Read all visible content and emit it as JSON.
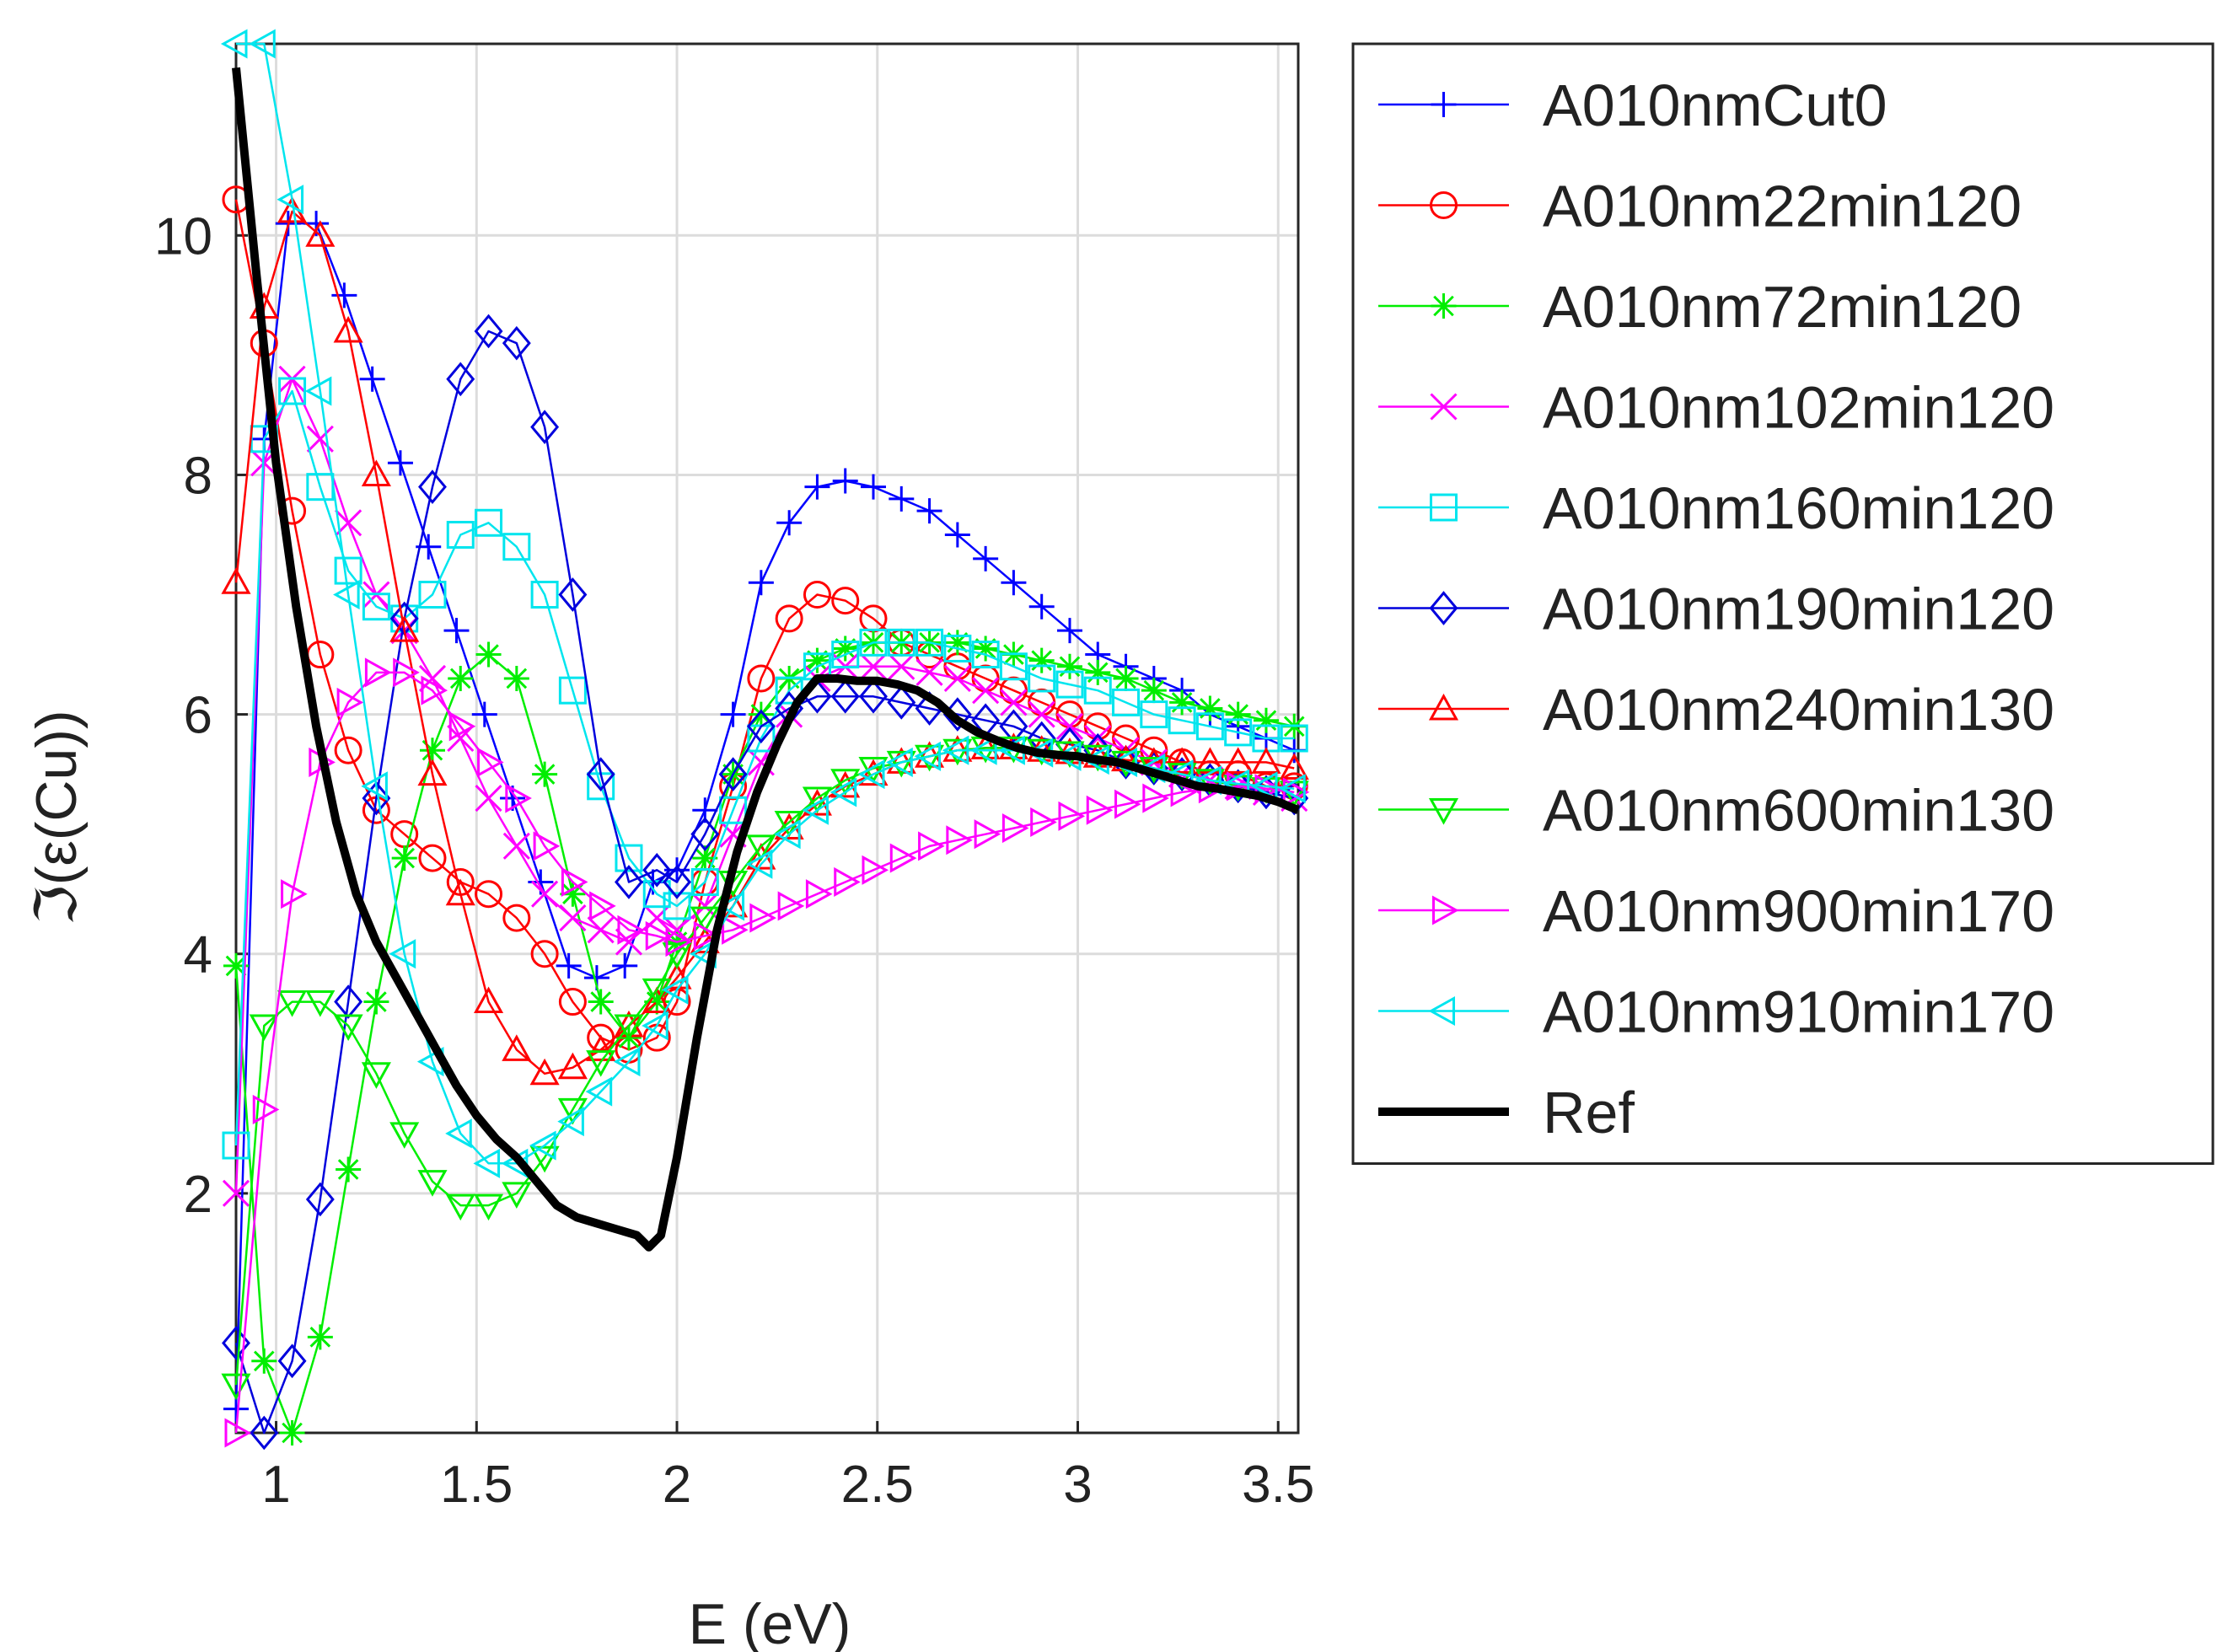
{
  "chart_data": {
    "type": "line",
    "title": "",
    "xlabel": "E (eV)",
    "ylabel": "ℑ(ε(Cu))",
    "xlim": [
      0.9,
      3.55
    ],
    "ylim": [
      0,
      11.6
    ],
    "xticks": [
      1,
      1.5,
      2,
      2.5,
      3,
      3.5
    ],
    "xtick_labels": [
      "1",
      "1.5",
      "2",
      "2.5",
      "3",
      "3.5"
    ],
    "yticks": [
      2,
      4,
      6,
      8,
      10
    ],
    "ytick_labels": [
      "2",
      "4",
      "6",
      "8",
      "10"
    ],
    "grid": true,
    "legend_position": "outside-right",
    "series": [
      {
        "name": "A010nmCut0",
        "color": "#0000ff",
        "marker": "plus",
        "x": [
          0.9,
          0.97,
          1.03,
          1.1,
          1.17,
          1.24,
          1.31,
          1.38,
          1.45,
          1.52,
          1.59,
          1.66,
          1.73,
          1.8,
          1.87,
          1.94,
          2.0,
          2.07,
          2.14,
          2.21,
          2.28,
          2.35,
          2.42,
          2.49,
          2.56,
          2.63,
          2.7,
          2.77,
          2.84,
          2.91,
          2.98,
          3.05,
          3.12,
          3.19,
          3.26,
          3.33,
          3.4,
          3.47,
          3.54
        ],
        "y": [
          0.2,
          8.3,
          10.1,
          10.1,
          9.5,
          8.8,
          8.1,
          7.4,
          6.7,
          6.0,
          5.3,
          4.6,
          3.9,
          3.8,
          3.9,
          4.6,
          4.7,
          5.2,
          6.0,
          7.1,
          7.6,
          7.9,
          7.95,
          7.9,
          7.8,
          7.7,
          7.5,
          7.3,
          7.1,
          6.9,
          6.7,
          6.5,
          6.4,
          6.3,
          6.2,
          6.0,
          5.9,
          5.8,
          5.7
        ]
      },
      {
        "name": "A010nm22min120",
        "color": "#ff0000",
        "marker": "circle",
        "x": [
          0.9,
          0.97,
          1.04,
          1.11,
          1.18,
          1.25,
          1.32,
          1.39,
          1.46,
          1.53,
          1.6,
          1.67,
          1.74,
          1.81,
          1.88,
          1.95,
          2.0,
          2.07,
          2.14,
          2.21,
          2.28,
          2.35,
          2.42,
          2.49,
          2.56,
          2.63,
          2.7,
          2.77,
          2.84,
          2.91,
          2.98,
          3.05,
          3.12,
          3.19,
          3.26,
          3.33,
          3.4,
          3.47,
          3.54
        ],
        "y": [
          10.3,
          9.1,
          7.7,
          6.5,
          5.7,
          5.2,
          5.0,
          4.8,
          4.6,
          4.5,
          4.3,
          4.0,
          3.6,
          3.3,
          3.2,
          3.3,
          3.6,
          4.6,
          5.4,
          6.3,
          6.8,
          7.0,
          6.95,
          6.8,
          6.6,
          6.5,
          6.4,
          6.3,
          6.2,
          6.1,
          6.0,
          5.9,
          5.8,
          5.7,
          5.6,
          5.5,
          5.5,
          5.4,
          5.4
        ]
      },
      {
        "name": "A010nm72min120",
        "color": "#00ee00",
        "marker": "asterisk",
        "x": [
          0.9,
          0.97,
          1.04,
          1.11,
          1.18,
          1.25,
          1.32,
          1.39,
          1.46,
          1.53,
          1.6,
          1.67,
          1.74,
          1.81,
          1.88,
          1.95,
          2.0,
          2.07,
          2.14,
          2.21,
          2.28,
          2.35,
          2.42,
          2.49,
          2.56,
          2.63,
          2.7,
          2.77,
          2.84,
          2.91,
          2.98,
          3.05,
          3.12,
          3.19,
          3.26,
          3.33,
          3.4,
          3.47,
          3.54
        ],
        "y": [
          3.9,
          0.6,
          0.0,
          0.8,
          2.2,
          3.6,
          4.8,
          5.7,
          6.3,
          6.5,
          6.3,
          5.5,
          4.5,
          3.6,
          3.3,
          3.6,
          4.1,
          4.8,
          5.5,
          6.0,
          6.3,
          6.45,
          6.55,
          6.6,
          6.6,
          6.6,
          6.6,
          6.55,
          6.5,
          6.45,
          6.4,
          6.35,
          6.3,
          6.2,
          6.1,
          6.05,
          6.0,
          5.95,
          5.9
        ]
      },
      {
        "name": "A010nm102min120",
        "color": "#ff00ff",
        "marker": "x",
        "x": [
          0.9,
          0.97,
          1.04,
          1.11,
          1.18,
          1.25,
          1.32,
          1.39,
          1.46,
          1.53,
          1.6,
          1.67,
          1.74,
          1.81,
          1.88,
          1.95,
          2.0,
          2.07,
          2.14,
          2.21,
          2.28,
          2.35,
          2.42,
          2.49,
          2.56,
          2.63,
          2.7,
          2.77,
          2.84,
          2.91,
          2.98,
          3.05,
          3.12,
          3.19,
          3.26,
          3.33,
          3.4,
          3.47,
          3.54
        ],
        "y": [
          2.0,
          8.1,
          8.8,
          8.3,
          7.6,
          7.0,
          6.7,
          6.3,
          5.8,
          5.3,
          4.9,
          4.5,
          4.3,
          4.2,
          4.1,
          4.3,
          4.2,
          4.4,
          5.0,
          5.6,
          6.0,
          6.3,
          6.4,
          6.4,
          6.4,
          6.35,
          6.3,
          6.2,
          6.1,
          6.0,
          5.9,
          5.8,
          5.7,
          5.6,
          5.5,
          5.45,
          5.4,
          5.35,
          5.3
        ]
      },
      {
        "name": "A010nm160min120",
        "color": "#00e5ee",
        "marker": "square",
        "x": [
          0.9,
          0.97,
          1.04,
          1.11,
          1.18,
          1.25,
          1.32,
          1.39,
          1.46,
          1.53,
          1.6,
          1.67,
          1.74,
          1.81,
          1.88,
          1.95,
          2.0,
          2.07,
          2.14,
          2.21,
          2.28,
          2.35,
          2.42,
          2.49,
          2.56,
          2.63,
          2.7,
          2.77,
          2.84,
          2.91,
          2.98,
          3.05,
          3.12,
          3.19,
          3.26,
          3.33,
          3.4,
          3.47,
          3.54
        ],
        "y": [
          2.4,
          8.3,
          8.7,
          7.9,
          7.2,
          6.9,
          6.8,
          7.0,
          7.5,
          7.6,
          7.4,
          7.0,
          6.2,
          5.4,
          4.8,
          4.5,
          4.4,
          4.6,
          5.2,
          5.8,
          6.2,
          6.4,
          6.5,
          6.6,
          6.6,
          6.6,
          6.55,
          6.5,
          6.4,
          6.3,
          6.25,
          6.2,
          6.1,
          6.0,
          5.95,
          5.9,
          5.85,
          5.8,
          5.8
        ]
      },
      {
        "name": "A010nm190min120",
        "color": "#0000dd",
        "marker": "diamond",
        "x": [
          0.9,
          0.97,
          1.04,
          1.11,
          1.18,
          1.25,
          1.32,
          1.39,
          1.46,
          1.53,
          1.6,
          1.67,
          1.74,
          1.81,
          1.88,
          1.95,
          2.0,
          2.07,
          2.14,
          2.21,
          2.28,
          2.35,
          2.42,
          2.49,
          2.56,
          2.63,
          2.7,
          2.77,
          2.84,
          2.91,
          2.98,
          3.05,
          3.12,
          3.19,
          3.26,
          3.33,
          3.4,
          3.47,
          3.54
        ],
        "y": [
          0.75,
          0.0,
          0.6,
          1.95,
          3.6,
          5.3,
          6.8,
          7.9,
          8.8,
          9.2,
          9.1,
          8.4,
          7.0,
          5.5,
          4.6,
          4.7,
          4.6,
          5.0,
          5.5,
          5.9,
          6.05,
          6.15,
          6.15,
          6.15,
          6.1,
          6.05,
          6.0,
          5.95,
          5.9,
          5.8,
          5.75,
          5.7,
          5.6,
          5.55,
          5.5,
          5.45,
          5.4,
          5.35,
          5.3
        ]
      },
      {
        "name": "A010nm240min130",
        "color": "#ff0000",
        "marker": "triangle-up",
        "x": [
          0.9,
          0.97,
          1.04,
          1.11,
          1.18,
          1.25,
          1.32,
          1.39,
          1.46,
          1.53,
          1.6,
          1.67,
          1.74,
          1.81,
          1.88,
          1.95,
          2.0,
          2.07,
          2.14,
          2.21,
          2.28,
          2.35,
          2.42,
          2.49,
          2.56,
          2.63,
          2.7,
          2.77,
          2.84,
          2.91,
          2.98,
          3.05,
          3.12,
          3.19,
          3.26,
          3.33,
          3.4,
          3.47,
          3.54
        ],
        "y": [
          7.1,
          9.4,
          10.2,
          10.0,
          9.2,
          8.0,
          6.7,
          5.5,
          4.5,
          3.6,
          3.2,
          3.0,
          3.05,
          3.2,
          3.4,
          3.6,
          3.8,
          4.1,
          4.4,
          4.8,
          5.05,
          5.25,
          5.4,
          5.5,
          5.6,
          5.65,
          5.7,
          5.72,
          5.72,
          5.7,
          5.68,
          5.65,
          5.62,
          5.6,
          5.6,
          5.6,
          5.6,
          5.6,
          5.55
        ]
      },
      {
        "name": "A010nm600min130",
        "color": "#00ee00",
        "marker": "triangle-down",
        "x": [
          0.9,
          0.97,
          1.04,
          1.11,
          1.18,
          1.25,
          1.32,
          1.39,
          1.46,
          1.53,
          1.6,
          1.67,
          1.74,
          1.81,
          1.88,
          1.95,
          2.0,
          2.07,
          2.14,
          2.21,
          2.28,
          2.35,
          2.42,
          2.49,
          2.56,
          2.63,
          2.7,
          2.77,
          2.84,
          2.91,
          2.98,
          3.05,
          3.12,
          3.19,
          3.26,
          3.33,
          3.4,
          3.47,
          3.54
        ],
        "y": [
          0.4,
          3.4,
          3.6,
          3.6,
          3.4,
          3.0,
          2.5,
          2.1,
          1.9,
          1.9,
          2.0,
          2.3,
          2.7,
          3.1,
          3.4,
          3.7,
          4.0,
          4.3,
          4.6,
          4.9,
          5.1,
          5.3,
          5.45,
          5.55,
          5.6,
          5.65,
          5.7,
          5.72,
          5.72,
          5.7,
          5.68,
          5.65,
          5.6,
          5.55,
          5.5,
          5.45,
          5.4,
          5.38,
          5.35
        ]
      },
      {
        "name": "A010nm900min170",
        "color": "#ff00ff",
        "marker": "triangle-right",
        "x": [
          0.9,
          0.97,
          1.04,
          1.11,
          1.18,
          1.25,
          1.32,
          1.39,
          1.46,
          1.53,
          1.6,
          1.67,
          1.74,
          1.81,
          1.88,
          1.95,
          2.0,
          2.07,
          2.14,
          2.21,
          2.28,
          2.35,
          2.42,
          2.49,
          2.56,
          2.63,
          2.7,
          2.77,
          2.84,
          2.91,
          2.98,
          3.05,
          3.12,
          3.19,
          3.26,
          3.33,
          3.4,
          3.47,
          3.54
        ],
        "y": [
          0.0,
          2.7,
          4.5,
          5.6,
          6.1,
          6.35,
          6.35,
          6.2,
          5.9,
          5.6,
          5.3,
          4.9,
          4.6,
          4.4,
          4.2,
          4.15,
          4.1,
          4.15,
          4.2,
          4.3,
          4.4,
          4.5,
          4.6,
          4.7,
          4.8,
          4.9,
          4.95,
          5.0,
          5.05,
          5.1,
          5.15,
          5.2,
          5.25,
          5.3,
          5.35,
          5.38,
          5.4,
          5.38,
          5.35
        ]
      },
      {
        "name": "A010nm910min170",
        "color": "#00e5ee",
        "marker": "triangle-left",
        "x": [
          0.9,
          0.97,
          1.04,
          1.11,
          1.18,
          1.25,
          1.32,
          1.39,
          1.46,
          1.53,
          1.6,
          1.67,
          1.74,
          1.81,
          1.88,
          1.95,
          2.0,
          2.07,
          2.14,
          2.21,
          2.28,
          2.35,
          2.42,
          2.49,
          2.56,
          2.63,
          2.7,
          2.77,
          2.84,
          2.91,
          2.98,
          3.05,
          3.12,
          3.19,
          3.26,
          3.33,
          3.4,
          3.47,
          3.54
        ],
        "y": [
          11.6,
          11.6,
          10.3,
          8.7,
          7.0,
          5.4,
          4.0,
          3.1,
          2.5,
          2.25,
          2.25,
          2.4,
          2.6,
          2.85,
          3.1,
          3.4,
          3.7,
          4.0,
          4.4,
          4.75,
          5.0,
          5.2,
          5.35,
          5.5,
          5.6,
          5.65,
          5.7,
          5.7,
          5.7,
          5.68,
          5.65,
          5.62,
          5.6,
          5.55,
          5.5,
          5.45,
          5.42,
          5.4,
          5.38
        ]
      },
      {
        "name": "Ref",
        "color": "#000000",
        "marker": "none",
        "x": [
          0.9,
          0.95,
          1.0,
          1.05,
          1.1,
          1.15,
          1.2,
          1.25,
          1.3,
          1.35,
          1.4,
          1.45,
          1.5,
          1.55,
          1.6,
          1.65,
          1.7,
          1.75,
          1.8,
          1.85,
          1.9,
          1.93,
          1.96,
          2.0,
          2.05,
          2.1,
          2.15,
          2.2,
          2.25,
          2.3,
          2.35,
          2.4,
          2.45,
          2.5,
          2.55,
          2.6,
          2.65,
          2.7,
          2.75,
          2.8,
          2.85,
          2.9,
          2.95,
          3.0,
          3.05,
          3.1,
          3.15,
          3.2,
          3.25,
          3.3,
          3.35,
          3.4,
          3.45,
          3.5,
          3.55
        ],
        "y": [
          11.4,
          9.7,
          8.1,
          6.9,
          5.9,
          5.1,
          4.5,
          4.1,
          3.8,
          3.5,
          3.2,
          2.9,
          2.65,
          2.45,
          2.3,
          2.1,
          1.9,
          1.8,
          1.75,
          1.7,
          1.65,
          1.55,
          1.65,
          2.3,
          3.3,
          4.2,
          4.85,
          5.35,
          5.75,
          6.1,
          6.3,
          6.3,
          6.28,
          6.28,
          6.25,
          6.2,
          6.1,
          5.95,
          5.85,
          5.78,
          5.72,
          5.68,
          5.66,
          5.65,
          5.62,
          5.6,
          5.55,
          5.5,
          5.45,
          5.4,
          5.38,
          5.35,
          5.32,
          5.27,
          5.2
        ]
      }
    ]
  }
}
